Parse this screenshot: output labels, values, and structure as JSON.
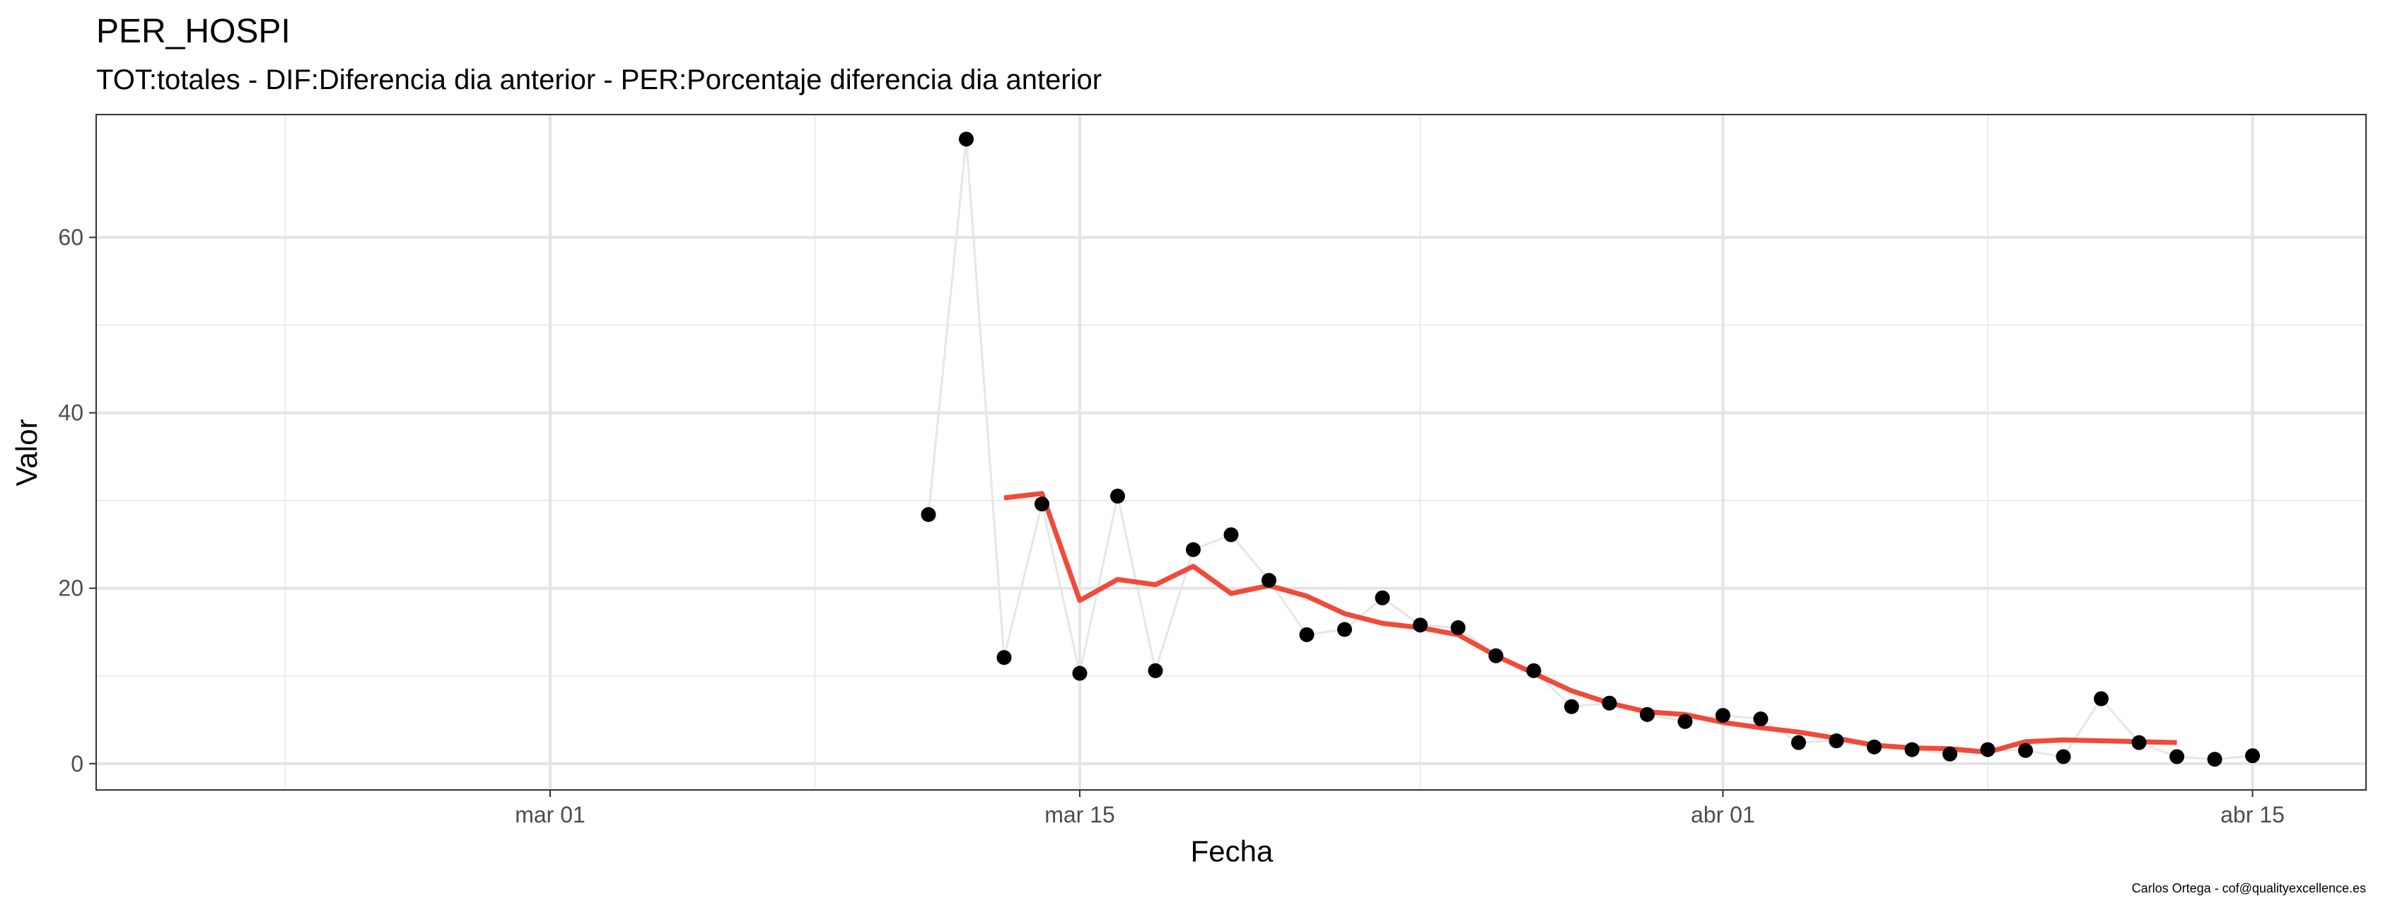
{
  "chart_data": {
    "type": "line",
    "title": "PER_HOSPI",
    "subtitle": "TOT:totales - DIF:Diferencia dia anterior - PER:Porcentaje diferencia dia anterior",
    "xlabel": "Fecha",
    "ylabel": "Valor",
    "caption": "Carlos Ortega - cof@qualityexcellence.es",
    "x_ticks": [
      {
        "date": "2020-03-01",
        "label": "mar 01"
      },
      {
        "date": "2020-03-15",
        "label": "mar 15"
      },
      {
        "date": "2020-04-01",
        "label": "abr 01"
      },
      {
        "date": "2020-04-15",
        "label": "abr 15"
      }
    ],
    "y_ticks": [
      0,
      20,
      40,
      60
    ],
    "xlim": [
      "2020-02-18",
      "2020-04-18"
    ],
    "ylim": [
      -3,
      74
    ],
    "grid": true,
    "colors": {
      "points": "#000000",
      "connector": "#e6e6e6",
      "rolling": "#f04a3a"
    },
    "series": [
      {
        "kind": "points",
        "values": [
          [
            "2020-03-11",
            28.4
          ],
          [
            "2020-03-12",
            71.2
          ],
          [
            "2020-03-13",
            12.1
          ],
          [
            "2020-03-14",
            29.6
          ],
          [
            "2020-03-15",
            10.3
          ],
          [
            "2020-03-16",
            30.5
          ],
          [
            "2020-03-17",
            10.6
          ],
          [
            "2020-03-18",
            24.4
          ],
          [
            "2020-03-19",
            26.1
          ],
          [
            "2020-03-20",
            20.9
          ],
          [
            "2020-03-21",
            14.7
          ],
          [
            "2020-03-22",
            15.3
          ],
          [
            "2020-03-23",
            18.9
          ],
          [
            "2020-03-24",
            15.8
          ],
          [
            "2020-03-25",
            15.5
          ],
          [
            "2020-03-26",
            12.3
          ],
          [
            "2020-03-27",
            10.6
          ],
          [
            "2020-03-28",
            6.5
          ],
          [
            "2020-03-29",
            6.9
          ],
          [
            "2020-03-30",
            5.6
          ],
          [
            "2020-03-31",
            4.8
          ],
          [
            "2020-04-01",
            5.5
          ],
          [
            "2020-04-02",
            5.1
          ],
          [
            "2020-04-03",
            2.4
          ],
          [
            "2020-04-04",
            2.6
          ],
          [
            "2020-04-05",
            1.9
          ],
          [
            "2020-04-06",
            1.6
          ],
          [
            "2020-04-07",
            1.1
          ],
          [
            "2020-04-08",
            1.6
          ],
          [
            "2020-04-09",
            1.5
          ],
          [
            "2020-04-10",
            0.8
          ],
          [
            "2020-04-11",
            7.4
          ],
          [
            "2020-04-12",
            2.4
          ],
          [
            "2020-04-13",
            0.8
          ],
          [
            "2020-04-14",
            0.5
          ],
          [
            "2020-04-15",
            0.9
          ]
        ]
      },
      {
        "kind": "rolling",
        "values": [
          [
            "2020-03-13",
            30.3
          ],
          [
            "2020-03-14",
            30.8
          ],
          [
            "2020-03-15",
            18.6
          ],
          [
            "2020-03-16",
            21.0
          ],
          [
            "2020-03-17",
            20.4
          ],
          [
            "2020-03-18",
            22.5
          ],
          [
            "2020-03-19",
            19.4
          ],
          [
            "2020-03-20",
            20.3
          ],
          [
            "2020-03-21",
            19.1
          ],
          [
            "2020-03-22",
            17.1
          ],
          [
            "2020-03-23",
            16.0
          ],
          [
            "2020-03-24",
            15.5
          ],
          [
            "2020-03-25",
            14.7
          ],
          [
            "2020-03-26",
            12.3
          ],
          [
            "2020-03-27",
            10.3
          ],
          [
            "2020-03-28",
            8.3
          ],
          [
            "2020-03-29",
            6.9
          ],
          [
            "2020-03-30",
            5.9
          ],
          [
            "2020-03-31",
            5.6
          ],
          [
            "2020-04-01",
            4.7
          ],
          [
            "2020-04-02",
            4.1
          ],
          [
            "2020-04-03",
            3.6
          ],
          [
            "2020-04-04",
            2.9
          ],
          [
            "2020-04-05",
            2.1
          ],
          [
            "2020-04-06",
            1.8
          ],
          [
            "2020-04-07",
            1.7
          ],
          [
            "2020-04-08",
            1.3
          ],
          [
            "2020-04-09",
            2.5
          ],
          [
            "2020-04-10",
            2.7
          ],
          [
            "2020-04-11",
            2.6
          ],
          [
            "2020-04-12",
            2.5
          ],
          [
            "2020-04-13",
            2.4
          ]
        ]
      }
    ]
  }
}
